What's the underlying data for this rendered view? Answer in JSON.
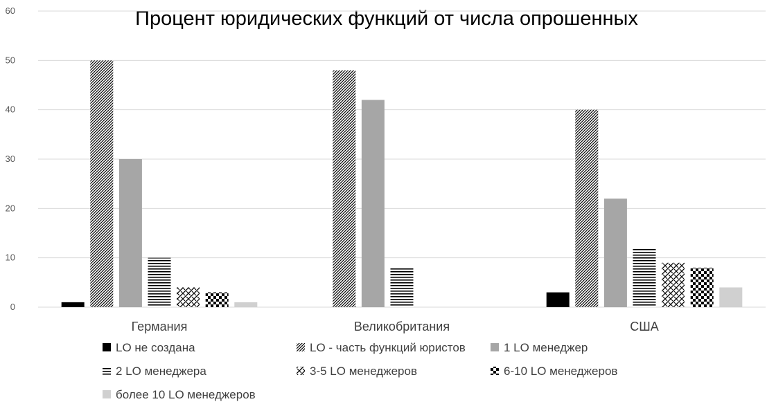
{
  "chart_data": {
    "type": "bar",
    "title": "Процент юридических функций от числа опрошенных",
    "xlabel": "",
    "ylabel": "",
    "ylim": [
      0,
      60
    ],
    "yticks": [
      0,
      10,
      20,
      30,
      40,
      50,
      60
    ],
    "grid": true,
    "legend_position": "bottom",
    "categories": [
      "Германия",
      "Великобритания",
      "США"
    ],
    "series": [
      {
        "name": "LO не создана",
        "pattern": "solid-black",
        "values": [
          1,
          0,
          3
        ]
      },
      {
        "name": "LO - часть функций юристов",
        "pattern": "diagonal-dense",
        "values": [
          50,
          48,
          40
        ]
      },
      {
        "name": "1 LO менеджер",
        "pattern": "solid-gray",
        "values": [
          30,
          42,
          22
        ]
      },
      {
        "name": "2 LO менеджера",
        "pattern": "horizontal-lines",
        "values": [
          10,
          8,
          12
        ]
      },
      {
        "name": "3-5 LO менеджеров",
        "pattern": "zigzag",
        "values": [
          4,
          0,
          9
        ]
      },
      {
        "name": "6-10 LO менеджеров",
        "pattern": "checker",
        "values": [
          3,
          0,
          8
        ]
      },
      {
        "name": "более 10 LO менеджеров",
        "pattern": "solid-lightgray",
        "values": [
          1,
          0,
          4
        ]
      }
    ],
    "colors": {
      "gridline": "#d9d9d9",
      "axis": "#d9d9d9",
      "black": "#000000",
      "gray": "#a6a6a6",
      "lightgray": "#d0d0d0"
    }
  }
}
